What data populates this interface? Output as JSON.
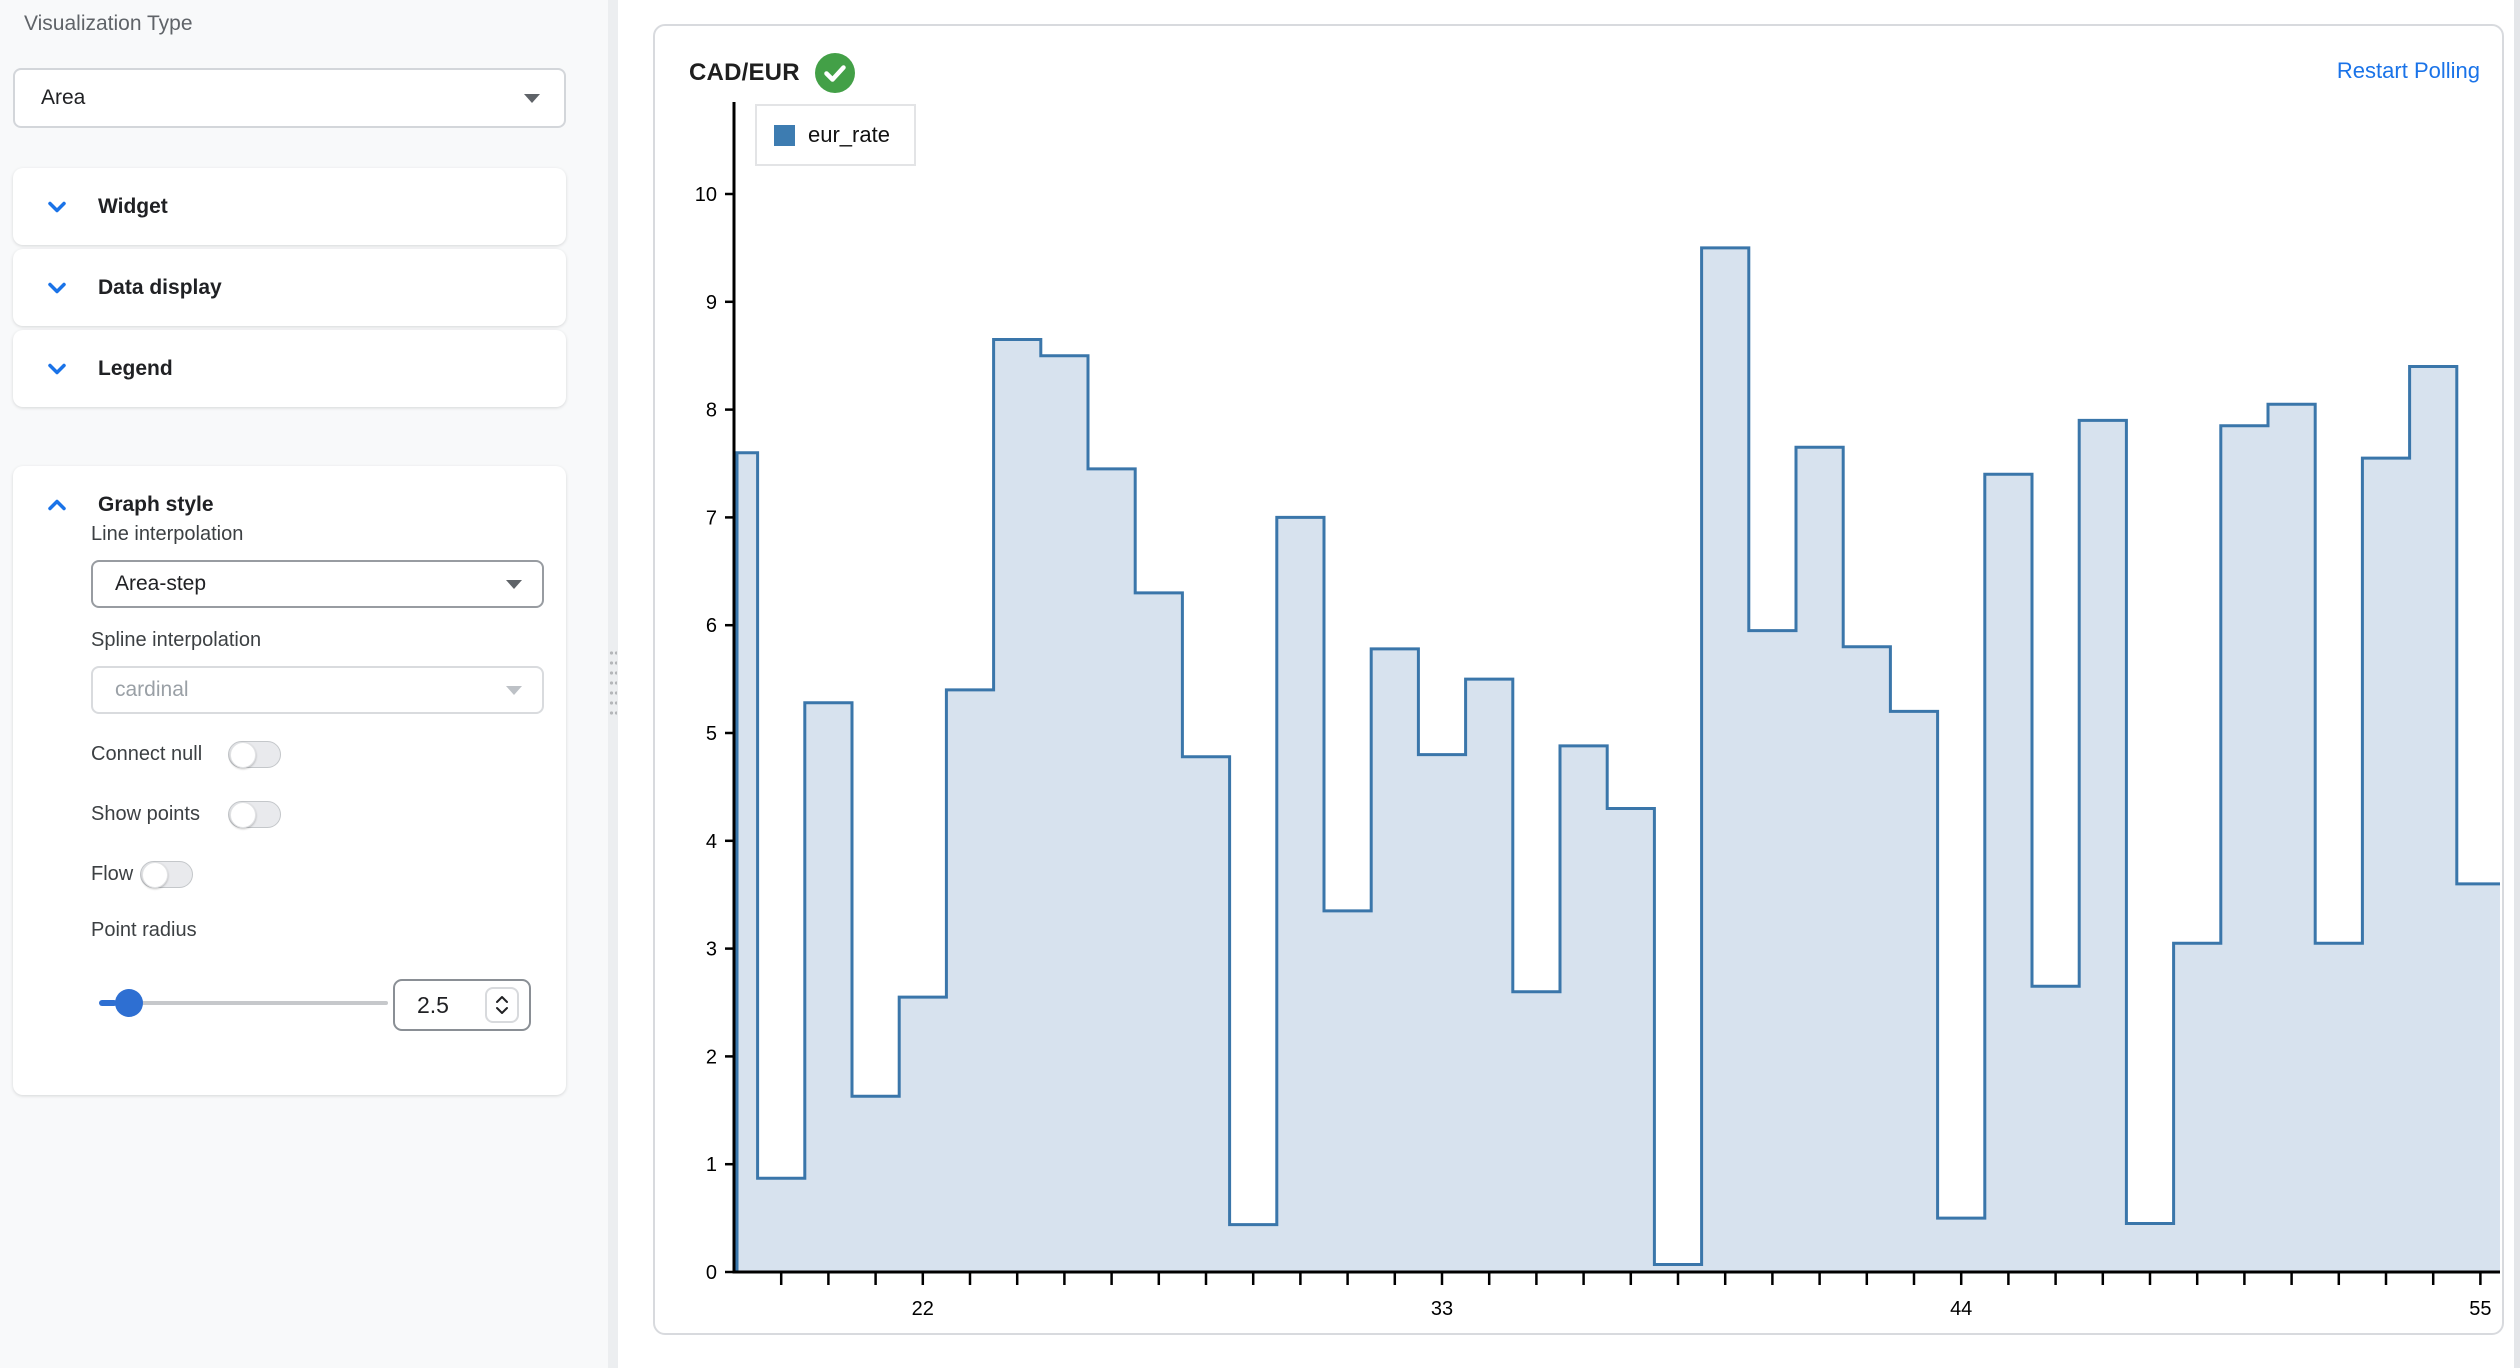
{
  "sidebar": {
    "visualization_type_label": "Visualization Type",
    "visualization_type_value": "Area",
    "sections": [
      {
        "label": "Widget"
      },
      {
        "label": "Data display"
      },
      {
        "label": "Legend"
      }
    ],
    "graph_style": {
      "title": "Graph style",
      "line_interpolation_label": "Line interpolation",
      "line_interpolation_value": "Area-step",
      "spline_interpolation_label": "Spline interpolation",
      "spline_interpolation_value": "cardinal",
      "connect_null_label": "Connect null",
      "show_points_label": "Show points",
      "flow_label": "Flow",
      "point_radius_label": "Point radius",
      "point_radius_value": "2.5"
    }
  },
  "chart_panel": {
    "title": "CAD/EUR",
    "status_icon": "check-circle",
    "restart_polling_label": "Restart Polling",
    "legend": {
      "label": "eur_rate",
      "color": "#3d7cb1"
    }
  },
  "chart_data": {
    "type": "area",
    "interpolation": "area-step",
    "title": "CAD/EUR",
    "legend_position": "inset-top-left",
    "grid": false,
    "series": [
      {
        "name": "eur_rate",
        "color": "#3a76aa",
        "fill": "#d7e2ee"
      }
    ],
    "x": [
      18,
      19,
      20,
      21,
      22,
      23,
      24,
      25,
      26,
      27,
      28,
      29,
      30,
      31,
      32,
      33,
      34,
      35,
      36,
      37,
      38,
      39,
      40,
      41,
      42,
      43,
      44,
      45,
      46,
      47,
      48,
      49,
      50,
      51,
      52,
      53,
      54,
      55
    ],
    "values": [
      7.6,
      0.87,
      5.28,
      1.63,
      2.55,
      5.4,
      8.65,
      8.5,
      7.45,
      6.3,
      4.78,
      0.44,
      7.0,
      3.35,
      5.78,
      4.8,
      5.5,
      2.6,
      4.88,
      4.3,
      0.07,
      9.5,
      5.95,
      7.65,
      5.8,
      5.2,
      0.5,
      7.4,
      2.65,
      7.9,
      0.45,
      3.05,
      7.85,
      8.05,
      3.05,
      7.55,
      8.4,
      3.6
    ],
    "y_ticks": [
      0,
      1,
      2,
      3,
      4,
      5,
      6,
      7,
      8,
      9,
      10
    ],
    "x_labeled": [
      22,
      33,
      44,
      55
    ],
    "ylim": [
      0,
      10.85
    ],
    "xlim": [
      18,
      55.5
    ]
  },
  "colors": {
    "accent": "#1a73e8",
    "success_green": "#43a047"
  }
}
